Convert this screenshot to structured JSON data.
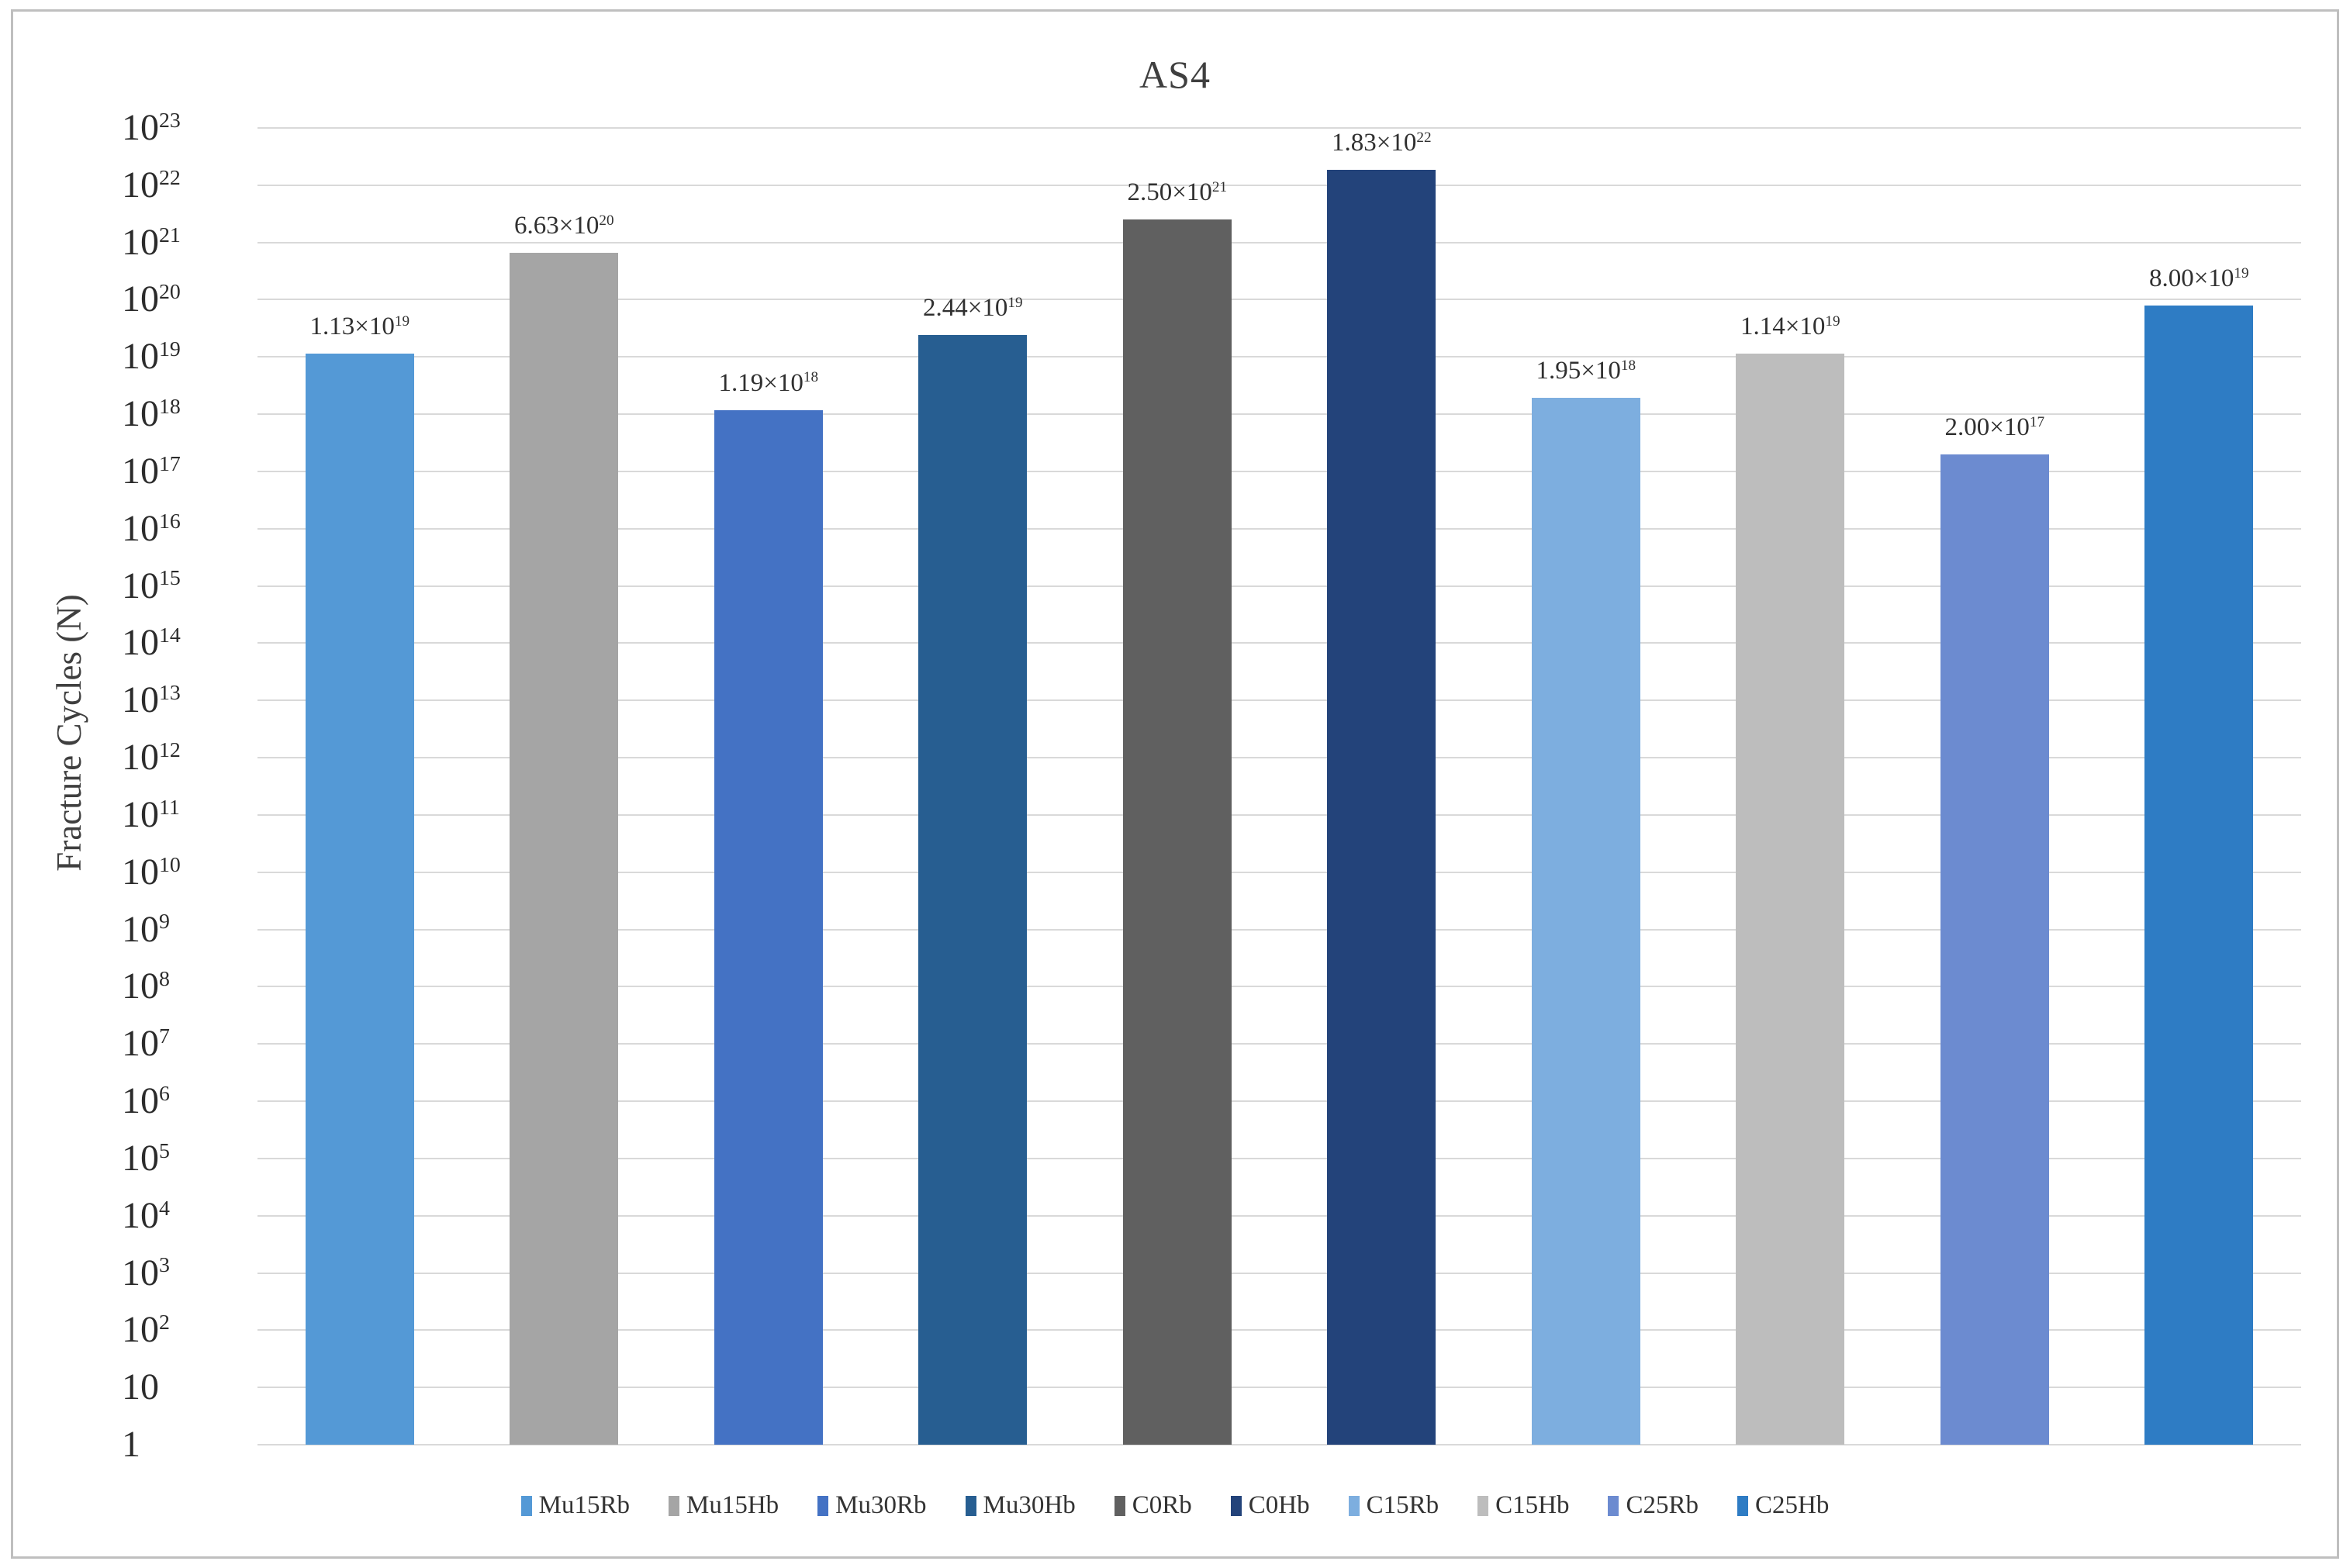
{
  "chart_data": {
    "type": "bar",
    "title": "AS4",
    "ylabel": "Fracture Cycles (N)",
    "xlabel": "",
    "yscale": "log10",
    "ylim": [
      1,
      1e+23
    ],
    "ylim_exponents": [
      0,
      23
    ],
    "grid": "horizontal",
    "legend_position": "bottom",
    "categories": [
      "Mu15Rb",
      "Mu15Hb",
      "Mu30Rb",
      "Mu30Hb",
      "C0Rb",
      "C0Hb",
      "C15Rb",
      "C15Hb",
      "C25Rb",
      "C25Hb"
    ],
    "series": [
      {
        "name": "Mu15Rb",
        "mantissa": 1.13,
        "exponent": 19,
        "value": 1.13e+19,
        "label": "1.13×10^19",
        "color": "#5499D6"
      },
      {
        "name": "Mu15Hb",
        "mantissa": 6.63,
        "exponent": 20,
        "value": 6.63e+20,
        "label": "6.63×10^20",
        "color": "#A5A5A5"
      },
      {
        "name": "Mu30Rb",
        "mantissa": 1.19,
        "exponent": 18,
        "value": 1.19e+18,
        "label": "1.19×10^18",
        "color": "#4472C4"
      },
      {
        "name": "Mu30Hb",
        "mantissa": 2.44,
        "exponent": 19,
        "value": 2.44e+19,
        "label": "2.44×10^19",
        "color": "#275E91"
      },
      {
        "name": "C0Rb",
        "mantissa": 2.5,
        "exponent": 21,
        "value": 2.5e+21,
        "label": "2.50×10^21",
        "color": "#606060"
      },
      {
        "name": "C0Hb",
        "mantissa": 1.83,
        "exponent": 22,
        "value": 1.83e+22,
        "label": "1.83×10^22",
        "color": "#23437A"
      },
      {
        "name": "C15Rb",
        "mantissa": 1.95,
        "exponent": 18,
        "value": 1.95e+18,
        "label": "1.95×10^18",
        "color": "#7DAEDF"
      },
      {
        "name": "C15Hb",
        "mantissa": 1.14,
        "exponent": 19,
        "value": 1.14e+19,
        "label": "1.14×10^19",
        "color": "#BDBDBD"
      },
      {
        "name": "C25Rb",
        "mantissa": 2.0,
        "exponent": 17,
        "value": 2e+17,
        "label": "2.00×10^17",
        "color": "#6C8BD0"
      },
      {
        "name": "C25Hb",
        "mantissa": 8.0,
        "exponent": 19,
        "value": 8e+19,
        "label": "8.00×10^19",
        "color": "#2E7CC4"
      }
    ]
  },
  "colors": {
    "frame_border": "#BFBFBF",
    "gridline": "#D9D9D9",
    "tick_text": "#2B2B2B",
    "label_text": "#303030",
    "title_text": "#3F3F3F"
  }
}
